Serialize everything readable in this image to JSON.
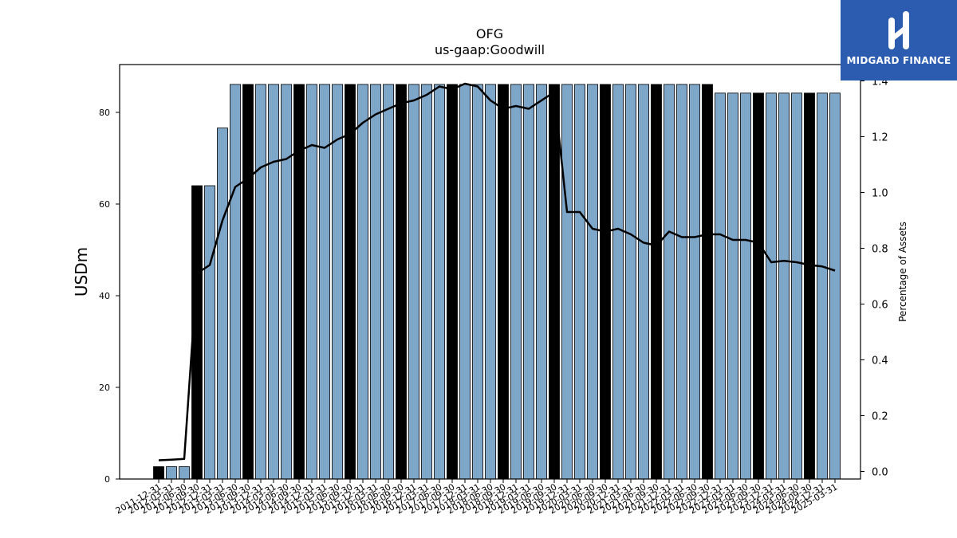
{
  "chart_data": {
    "type": "bar",
    "title": "OFG",
    "subtitle": "us-gaap:Goodwill",
    "ylabel": "USDm",
    "y2label": "Percentage of Assets",
    "ylim": [
      0,
      90
    ],
    "y2lim": [
      -0.025,
      1.45
    ],
    "yticks": [
      0,
      20,
      40,
      60,
      80
    ],
    "y2ticks": [
      "0.0",
      "0.2",
      "0.4",
      "0.6",
      "0.8",
      "1.0",
      "1.2",
      "1.4"
    ],
    "categories": [
      "2011-12-31",
      "2012-03-31",
      "2012-06-30",
      "2012-09-30",
      "2012-12-31",
      "2013-03-31",
      "2013-06-30",
      "2013-09-30",
      "2013-12-31",
      "2014-03-31",
      "2014-06-30",
      "2014-09-30",
      "2014-12-31",
      "2015-03-31",
      "2015-06-30",
      "2015-09-30",
      "2015-12-31",
      "2016-03-31",
      "2016-06-30",
      "2016-09-30",
      "2016-12-31",
      "2017-03-31",
      "2017-06-30",
      "2017-09-30",
      "2017-12-31",
      "2018-03-31",
      "2018-06-30",
      "2018-09-30",
      "2018-12-31",
      "2019-03-31",
      "2019-06-30",
      "2019-09-30",
      "2019-12-31",
      "2020-03-31",
      "2020-06-30",
      "2020-09-30",
      "2020-12-31",
      "2021-03-31",
      "2021-06-30",
      "2021-09-30",
      "2021-12-31",
      "2022-03-31",
      "2022-06-30",
      "2022-09-30",
      "2022-12-31",
      "2023-03-31",
      "2023-06-30",
      "2023-09-30",
      "2023-12-31",
      "2024-03-31",
      "2024-06-30",
      "2024-09-30",
      "2024-12-31",
      "2025-03-31"
    ],
    "series": [
      {
        "kind": "bar",
        "values": [
          2.7,
          2.7,
          2.7,
          64.0,
          64.0,
          76.6,
          86.1,
          86.1,
          86.1,
          86.1,
          86.1,
          86.1,
          86.1,
          86.1,
          86.1,
          86.1,
          86.1,
          86.1,
          86.1,
          86.1,
          86.1,
          86.1,
          86.1,
          86.1,
          86.1,
          86.1,
          86.1,
          86.1,
          86.1,
          86.1,
          86.1,
          86.1,
          86.1,
          86.1,
          86.1,
          86.1,
          86.1,
          86.1,
          86.1,
          86.1,
          86.1,
          86.1,
          86.1,
          86.1,
          84.2,
          84.2,
          84.2,
          84.2,
          84.2,
          84.2,
          84.2,
          84.2,
          84.2,
          84.2
        ],
        "highlight": [
          true,
          false,
          false,
          true,
          false,
          false,
          false,
          true,
          false,
          false,
          false,
          true,
          false,
          false,
          false,
          true,
          false,
          false,
          false,
          true,
          false,
          false,
          false,
          true,
          false,
          false,
          false,
          true,
          false,
          false,
          false,
          true,
          false,
          false,
          false,
          true,
          false,
          false,
          false,
          true,
          false,
          false,
          false,
          true,
          false,
          false,
          false,
          true,
          false,
          false,
          false,
          true,
          false,
          false
        ],
        "color": "#7ea6c9",
        "highlight_color": "#000000"
      },
      {
        "kind": "line",
        "axis": "right",
        "color": "#000000",
        "values": [
          0.04,
          0.042,
          0.045,
          0.71,
          0.74,
          0.9,
          1.02,
          1.05,
          1.09,
          1.11,
          1.12,
          1.15,
          1.17,
          1.16,
          1.19,
          1.21,
          1.25,
          1.28,
          1.3,
          1.32,
          1.33,
          1.35,
          1.38,
          1.37,
          1.39,
          1.38,
          1.33,
          1.3,
          1.31,
          1.3,
          1.33,
          1.36,
          0.93,
          0.93,
          0.87,
          0.86,
          0.87,
          0.85,
          0.82,
          0.81,
          0.86,
          0.84,
          0.84,
          0.85,
          0.85,
          0.83,
          0.83,
          0.82,
          0.75,
          0.755,
          0.75,
          0.74,
          0.735,
          0.72
        ]
      }
    ]
  },
  "logo": {
    "text": "MIDGARD FINANCE",
    "color": "#2b5cb0"
  }
}
